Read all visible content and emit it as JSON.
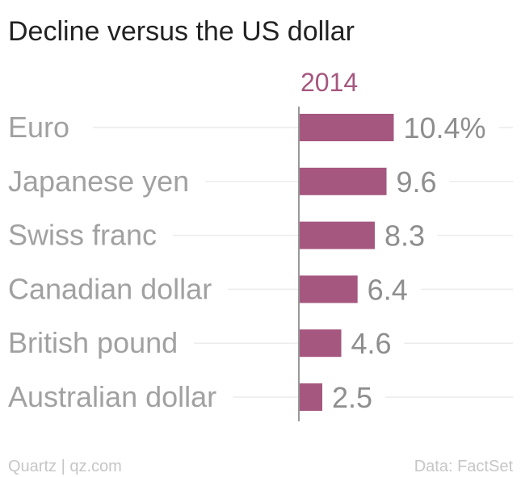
{
  "chart_data": {
    "type": "bar",
    "orientation": "horizontal",
    "title": "Decline versus the US dollar",
    "series": [
      {
        "name": "2014",
        "values": [
          10.4,
          9.6,
          8.3,
          6.4,
          4.6,
          2.5
        ]
      }
    ],
    "categories": [
      "Euro",
      "Japanese yen",
      "Swiss franc",
      "Canadian dollar",
      "British pound",
      "Australian dollar"
    ],
    "value_labels": [
      "10.4%",
      "9.6",
      "8.3",
      "6.4",
      "4.6",
      "2.5"
    ],
    "unit": "%",
    "xlim": [
      0,
      10.4
    ],
    "grid": true,
    "bar_color": "#a5577f"
  },
  "footer": {
    "credit": "Quartz | qz.com",
    "source": "Data: FactSet"
  }
}
